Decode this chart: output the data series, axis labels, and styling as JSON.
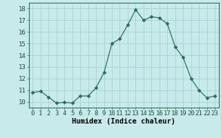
{
  "x": [
    0,
    1,
    2,
    3,
    4,
    5,
    6,
    7,
    8,
    9,
    10,
    11,
    12,
    13,
    14,
    15,
    16,
    17,
    18,
    19,
    20,
    21,
    22,
    23
  ],
  "y": [
    10.8,
    10.9,
    10.4,
    9.9,
    9.95,
    9.9,
    10.5,
    10.5,
    11.2,
    12.5,
    15.0,
    15.4,
    16.6,
    17.9,
    17.0,
    17.3,
    17.2,
    16.7,
    14.7,
    13.8,
    12.0,
    11.0,
    10.35,
    10.5
  ],
  "line_color": "#2e6b5e",
  "marker": "D",
  "marker_size": 2.5,
  "bg_color": "#c8eaea",
  "grid_color": "#aad4d4",
  "xlabel": "Humidex (Indice chaleur)",
  "xlim": [
    -0.5,
    23.5
  ],
  "ylim": [
    9.5,
    18.5
  ],
  "yticks": [
    10,
    11,
    12,
    13,
    14,
    15,
    16,
    17,
    18
  ],
  "xticks": [
    0,
    1,
    2,
    3,
    4,
    5,
    6,
    7,
    8,
    9,
    10,
    11,
    12,
    13,
    14,
    15,
    16,
    17,
    18,
    19,
    20,
    21,
    22,
    23
  ],
  "tick_fontsize": 6.5,
  "label_fontsize": 7.5
}
